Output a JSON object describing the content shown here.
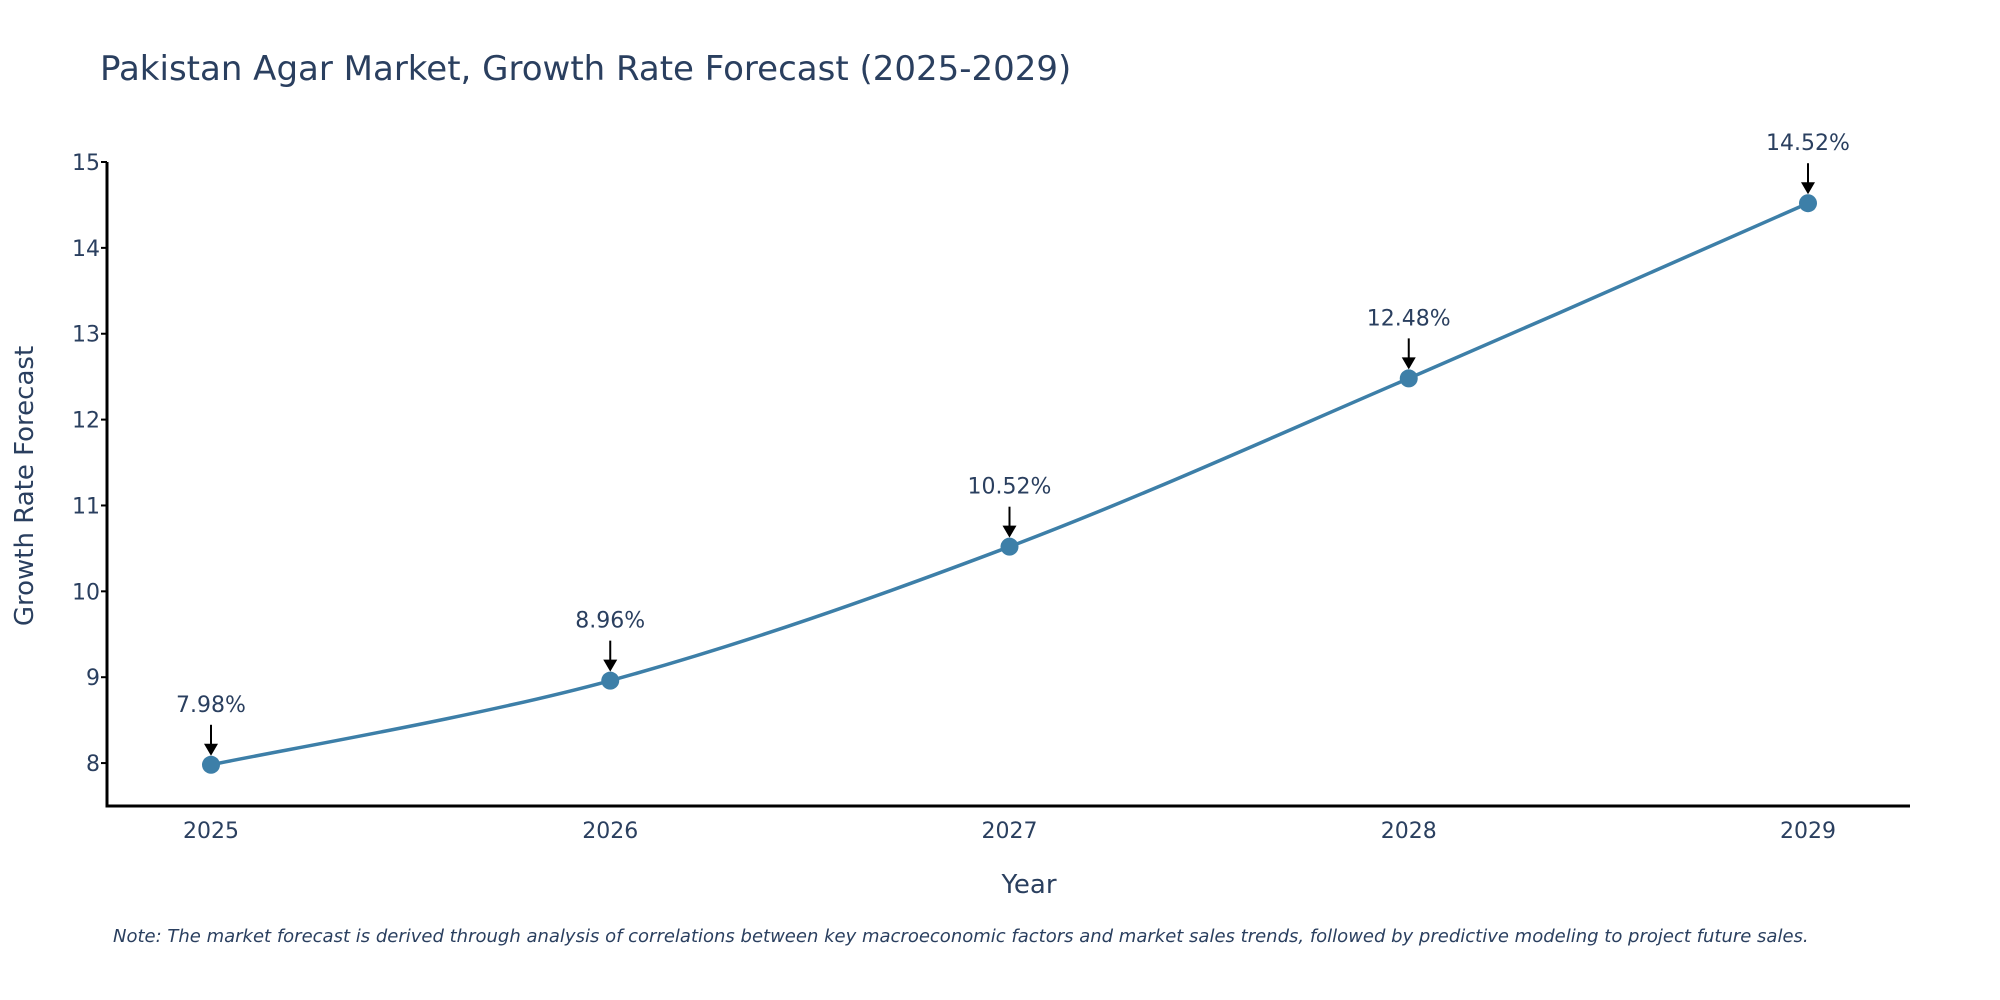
{
  "chart_data": {
    "type": "line",
    "title": "Pakistan Agar Market, Growth Rate Forecast (2025-2029)",
    "xlabel": "Year",
    "ylabel": "Growth Rate Forecast",
    "categories": [
      "2025",
      "2026",
      "2027",
      "2028",
      "2029"
    ],
    "series": [
      {
        "name": "Growth Rate Forecast",
        "values": [
          7.98,
          8.96,
          10.52,
          12.48,
          14.52
        ],
        "labels": [
          "7.98%",
          "8.96%",
          "10.52%",
          "12.48%",
          "14.52%"
        ]
      }
    ],
    "ylim": [
      7.5,
      15
    ],
    "yticks": [
      8,
      9,
      10,
      11,
      12,
      13,
      14,
      15
    ],
    "ytick_labels": [
      "8",
      "9",
      "10",
      "11",
      "12",
      "13",
      "14",
      "15"
    ],
    "grid": false,
    "legend": "none",
    "line_color": "#3d7fa8",
    "marker_color": "#3d7fa8",
    "axis_color": "#000000",
    "text_color": "#2a3f5f",
    "note": "Note: The market forecast is derived through analysis of correlations between key macroeconomic factors and market sales trends, followed by predictive modeling to project future sales."
  }
}
